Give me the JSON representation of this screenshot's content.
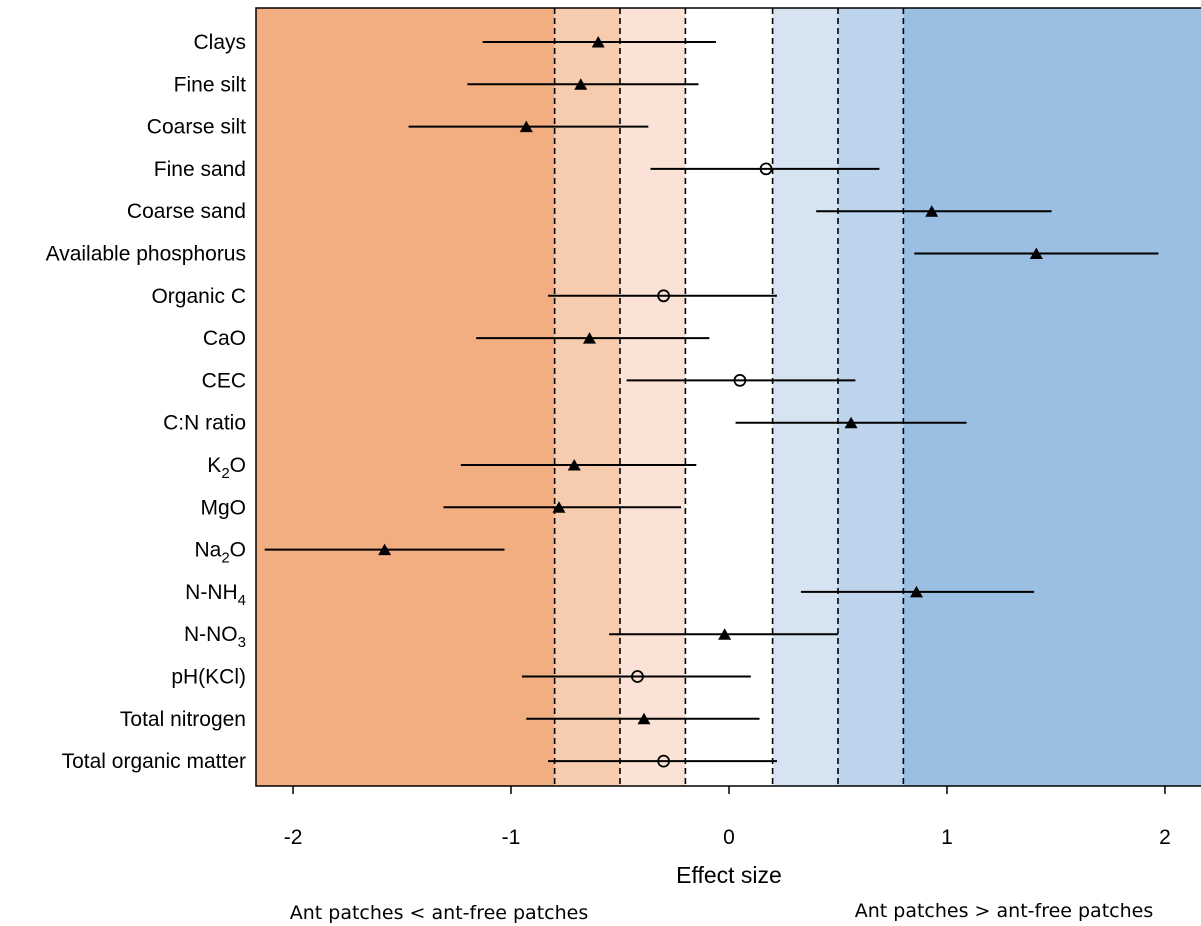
{
  "chart_data": {
    "type": "scatter",
    "subtype": "forest-plot",
    "xlabel": "Effect size",
    "xlim": [
      -2.17,
      2.17
    ],
    "xticks": [
      -2,
      -1,
      0,
      1,
      2
    ],
    "xtick_labels": [
      "-2",
      "-1",
      "0",
      "1",
      "2"
    ],
    "thresholds": [
      -0.8,
      -0.5,
      -0.2,
      0.2,
      0.5,
      0.8
    ],
    "band_colors": {
      "neg_large": "#f2ad80",
      "neg_medium": "#f7cbae",
      "neg_small": "#fae3d6",
      "neutral": "#ffffff",
      "pos_small": "#d6e4f2",
      "pos_medium": "#bdd4ec",
      "pos_large": "#9abfe2"
    },
    "footnote_left": "Ant patches < ant-free patches",
    "footnote_right": "Ant patches > ant-free patches",
    "rows": [
      {
        "label": "Clays",
        "base": "Clays",
        "sub": "",
        "tail": "",
        "effect": -0.6,
        "lower": -1.13,
        "upper": -0.06,
        "marker": "triangle"
      },
      {
        "label": "Fine silt",
        "base": "Fine silt",
        "sub": "",
        "tail": "",
        "effect": -0.68,
        "lower": -1.2,
        "upper": -0.14,
        "marker": "triangle"
      },
      {
        "label": "Coarse silt",
        "base": "Coarse silt",
        "sub": "",
        "tail": "",
        "effect": -0.93,
        "lower": -1.47,
        "upper": -0.37,
        "marker": "triangle"
      },
      {
        "label": "Fine sand",
        "base": "Fine sand",
        "sub": "",
        "tail": "",
        "effect": 0.17,
        "lower": -0.36,
        "upper": 0.69,
        "marker": "circle"
      },
      {
        "label": "Coarse sand",
        "base": "Coarse sand",
        "sub": "",
        "tail": "",
        "effect": 0.93,
        "lower": 0.4,
        "upper": 1.48,
        "marker": "triangle"
      },
      {
        "label": "Available phosphorus",
        "base": "Available phosphorus",
        "sub": "",
        "tail": "",
        "effect": 1.41,
        "lower": 0.85,
        "upper": 1.97,
        "marker": "triangle"
      },
      {
        "label": "Organic C",
        "base": "Organic C",
        "sub": "",
        "tail": "",
        "effect": -0.3,
        "lower": -0.83,
        "upper": 0.22,
        "marker": "circle"
      },
      {
        "label": "CaO",
        "base": "CaO",
        "sub": "",
        "tail": "",
        "effect": -0.64,
        "lower": -1.16,
        "upper": -0.09,
        "marker": "triangle"
      },
      {
        "label": "CEC",
        "base": "CEC",
        "sub": "",
        "tail": "",
        "effect": 0.05,
        "lower": -0.47,
        "upper": 0.58,
        "marker": "circle"
      },
      {
        "label": "C:N ratio",
        "base": "C:N ratio",
        "sub": "",
        "tail": "",
        "effect": 0.56,
        "lower": 0.03,
        "upper": 1.09,
        "marker": "triangle"
      },
      {
        "label": "K2O",
        "base": "K",
        "sub": "2",
        "tail": "O",
        "effect": -0.71,
        "lower": -1.23,
        "upper": -0.15,
        "marker": "triangle"
      },
      {
        "label": "MgO",
        "base": "MgO",
        "sub": "",
        "tail": "",
        "effect": -0.78,
        "lower": -1.31,
        "upper": -0.22,
        "marker": "triangle"
      },
      {
        "label": "Na2O",
        "base": "Na",
        "sub": "2",
        "tail": "O",
        "effect": -1.58,
        "lower": -2.13,
        "upper": -1.03,
        "marker": "triangle"
      },
      {
        "label": "N-NH4",
        "base": "N-NH",
        "sub": "4",
        "tail": "",
        "effect": 0.86,
        "lower": 0.33,
        "upper": 1.4,
        "marker": "triangle"
      },
      {
        "label": "N-NO3",
        "base": "N-NO",
        "sub": "3",
        "tail": "",
        "effect": -0.02,
        "lower": -0.55,
        "upper": 0.5,
        "marker": "triangle"
      },
      {
        "label": "pH(KCl)",
        "base": "pH(KCl)",
        "sub": "",
        "tail": "",
        "effect": -0.42,
        "lower": -0.95,
        "upper": 0.1,
        "marker": "circle"
      },
      {
        "label": "Total nitrogen",
        "base": "Total nitrogen",
        "sub": "",
        "tail": "",
        "effect": -0.39,
        "lower": -0.93,
        "upper": 0.14,
        "marker": "triangle"
      },
      {
        "label": "Total organic matter",
        "base": "Total organic matter",
        "sub": "",
        "tail": "",
        "effect": -0.3,
        "lower": -0.83,
        "upper": 0.22,
        "marker": "circle"
      }
    ]
  }
}
